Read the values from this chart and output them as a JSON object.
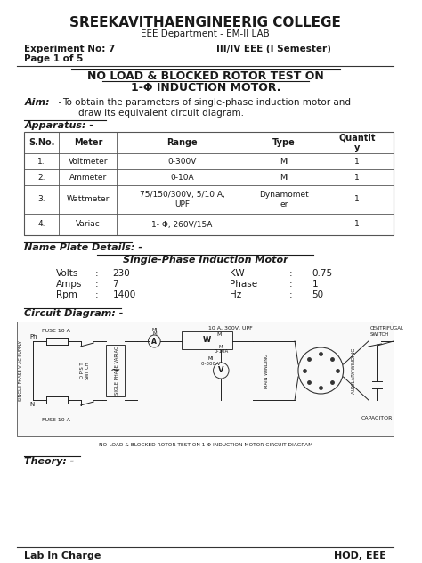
{
  "college_name": "SREEKAVITHAENGINEERIG COLLEGE",
  "dept": "EEE Department - EM-II LAB",
  "exp_no": "Experiment No: 7",
  "semester": "III/IV EEE (I Semester)",
  "page": "Page 1 of 5",
  "title_line1": "NO LOAD & BLOCKED ROTOR TEST ON",
  "title_line2": "1-Φ INDUCTION MOTOR.",
  "aim_label": "Aim:",
  "aim_dash": " -",
  "aim_text1": "To obtain the parameters of single-phase induction motor and",
  "aim_text2": "draw its equivalent circuit diagram.",
  "apparatus_label": "Apparatus: -",
  "table_headers": [
    "S.No.",
    "Meter",
    "Range",
    "Type",
    "Quantit\ny"
  ],
  "table_rows": [
    [
      "1.",
      "Voltmeter",
      "0-300V",
      "MI",
      "1"
    ],
    [
      "2.",
      "Ammeter",
      "0-10A",
      "MI",
      "1"
    ],
    [
      "3.",
      "Wattmeter",
      "75/150/300V, 5/10 A,\nUPF",
      "Dynamomet\ner",
      "1"
    ],
    [
      "4.",
      "Variac",
      "1- Φ, 260V/15A",
      "",
      "1"
    ]
  ],
  "nameplate_label": "Name Plate Details: -",
  "motor_label": "Single-Phase Induction Motor",
  "nameplate_data": [
    [
      "Volts",
      ":",
      "230",
      "KW",
      ":",
      "0.75"
    ],
    [
      "Amps",
      ":",
      "7",
      "Phase",
      ":",
      "1"
    ],
    [
      "Rpm",
      ":",
      "1400",
      "Hz",
      ":",
      "50"
    ]
  ],
  "circuit_label": "Circuit Diagram: -",
  "circuit_caption": "NO-LOAD & BLOCKED ROTOR TEST ON 1-Φ INDUCTION MOTOR CIRCUIT DIAGRAM",
  "theory_label": "Theory: -",
  "footer_left": "Lab In Charge",
  "footer_right": "HOD, EEE",
  "bg_color": "#ffffff",
  "text_color": "#1a1a1a",
  "line_color": "#333333",
  "table_border": "#555555"
}
